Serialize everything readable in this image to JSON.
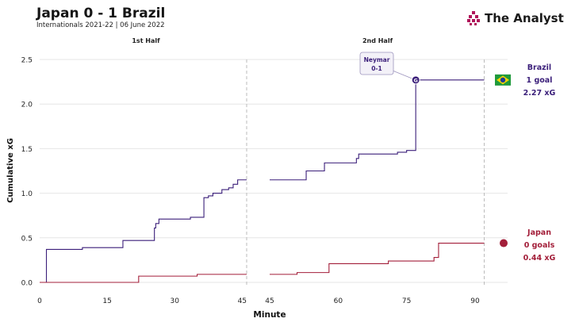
{
  "header": {
    "title": "Japan 0 - 1 Brazil",
    "subtitle": "Internationals 2021-22 | 06 June 2022"
  },
  "brand": {
    "name": "The Analyst",
    "logo_color": "#b0155a"
  },
  "colors": {
    "brazil": "#3b1f7a",
    "japan": "#a31f3a",
    "grid": "#e6e6e6",
    "halftime": "#bbbbbb"
  },
  "chart_data": {
    "type": "line",
    "style": "step",
    "xlabel": "Minute",
    "ylabel": "Cumulative xG",
    "ylim": [
      0,
      2.5
    ],
    "yticks": [
      0.0,
      0.5,
      1.0,
      1.5,
      2.0,
      2.5
    ],
    "ytick_labels": [
      "0.0",
      "0.5",
      "1.0",
      "1.5",
      "2.0",
      "2.5"
    ],
    "panels": [
      {
        "title": "1st Half",
        "xlim": [
          0,
          49
        ],
        "xticks": [
          0,
          15,
          30,
          45
        ],
        "xtick_labels": [
          "0",
          "15",
          "30",
          "45"
        ],
        "end_line": 46,
        "series": [
          {
            "team": "Brazil",
            "x": [
              0,
              1.5,
              9.5,
              18.5,
              25.5,
              25.8,
              26.5,
              33.5,
              36.5,
              37.5,
              38.5,
              40.5,
              42,
              43,
              44,
              46
            ],
            "y": [
              0,
              0.37,
              0.39,
              0.47,
              0.61,
              0.66,
              0.71,
              0.73,
              0.95,
              0.97,
              1.0,
              1.04,
              1.06,
              1.1,
              1.15,
              1.15
            ]
          },
          {
            "team": "Japan",
            "x": [
              0,
              22,
              35,
              46
            ],
            "y": [
              0,
              0.07,
              0.09,
              0.09
            ]
          }
        ]
      },
      {
        "title": "2nd Half",
        "xlim": [
          45,
          94
        ],
        "xticks": [
          45,
          60,
          75,
          90
        ],
        "xtick_labels": [
          "45",
          "60",
          "75",
          "90"
        ],
        "end_line": 92,
        "series": [
          {
            "team": "Brazil",
            "x": [
              45,
              53,
              57,
              64,
              64.5,
              73,
              75,
              77,
              92
            ],
            "y": [
              1.15,
              1.25,
              1.34,
              1.39,
              1.44,
              1.46,
              1.48,
              2.27,
              2.27
            ]
          },
          {
            "team": "Japan",
            "x": [
              45,
              51,
              58,
              71,
              81,
              82,
              92
            ],
            "y": [
              0.09,
              0.11,
              0.21,
              0.24,
              0.28,
              0.44,
              0.44
            ]
          }
        ],
        "annotation": {
          "minute": 77,
          "xg": 2.27,
          "player": "Neymar",
          "score": "0-1",
          "marker": "G"
        }
      }
    ],
    "teams": [
      {
        "name": "Brazil",
        "goals_text": "1 goal",
        "xg_text": "2.27 xG",
        "final_xg": 2.27,
        "color": "#3b1f7a"
      },
      {
        "name": "Japan",
        "goals_text": "0 goals",
        "xg_text": "0.44 xG",
        "final_xg": 0.44,
        "color": "#a31f3a"
      }
    ]
  }
}
